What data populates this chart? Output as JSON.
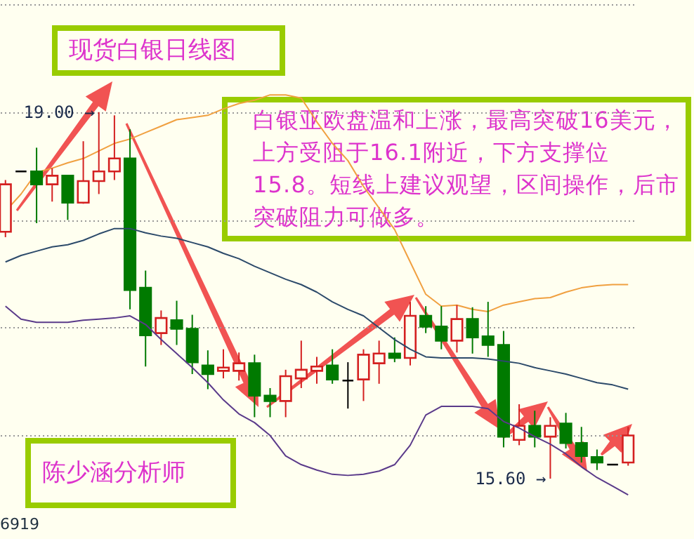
{
  "chart_data": {
    "type": "candlestick",
    "title": "现货白银日线图",
    "annotations": [
      "白银亚欧盘温和上涨，最高突破16美元，上方受阻于16.1附近，下方支撑位15.8。短线上建议观望，区间操作，后市突破阻力可做多。",
      "陈少涵分析师",
      "6919",
      "19.00 →",
      "15.60 →"
    ],
    "categories": [
      null,
      null,
      null,
      null,
      null,
      null,
      null,
      null,
      null,
      null,
      null,
      null,
      null,
      null,
      null,
      null,
      null,
      null,
      null,
      null,
      null,
      null,
      null,
      null,
      null,
      null,
      null,
      null,
      null,
      null,
      null,
      null,
      null,
      null,
      null,
      null,
      null,
      null,
      null,
      null,
      null
    ],
    "ohlc": [
      [
        17.89,
        18.37,
        17.84,
        18.33
      ],
      [
        18.45,
        18.45,
        18.45,
        18.45
      ],
      [
        18.45,
        18.67,
        17.97,
        18.33
      ],
      [
        18.33,
        18.48,
        18.17,
        18.41
      ],
      [
        18.41,
        18.41,
        18.0,
        18.16
      ],
      [
        18.16,
        18.73,
        18.15,
        18.36
      ],
      [
        18.36,
        19.0,
        18.24,
        18.45
      ],
      [
        18.45,
        18.97,
        18.37,
        18.57
      ],
      [
        18.57,
        18.84,
        17.17,
        17.35
      ],
      [
        17.37,
        17.53,
        16.64,
        16.93
      ],
      [
        16.95,
        17.16,
        16.84,
        17.09
      ],
      [
        17.07,
        17.25,
        16.84,
        16.99
      ],
      [
        16.99,
        17.12,
        16.57,
        16.68
      ],
      [
        16.65,
        16.79,
        16.43,
        16.57
      ],
      [
        16.6,
        16.8,
        16.53,
        16.63
      ],
      [
        16.6,
        16.77,
        16.51,
        16.67
      ],
      [
        16.67,
        16.75,
        16.17,
        16.37
      ],
      [
        16.37,
        16.44,
        16.17,
        16.32
      ],
      [
        16.32,
        16.61,
        16.17,
        16.55
      ],
      [
        16.53,
        16.88,
        16.44,
        16.61
      ],
      [
        16.6,
        16.73,
        16.48,
        16.64
      ],
      [
        16.65,
        16.8,
        16.48,
        16.52
      ],
      [
        16.51,
        16.68,
        16.25,
        16.51
      ],
      [
        16.52,
        16.8,
        16.32,
        16.75
      ],
      [
        16.67,
        16.88,
        16.48,
        16.76
      ],
      [
        16.76,
        16.91,
        16.68,
        16.72
      ],
      [
        16.72,
        17.24,
        16.65,
        17.11
      ],
      [
        17.11,
        17.2,
        16.95,
        17.01
      ],
      [
        17.01,
        17.2,
        16.8,
        16.88
      ],
      [
        16.88,
        17.21,
        16.77,
        17.08
      ],
      [
        17.08,
        17.19,
        16.76,
        16.91
      ],
      [
        16.92,
        17.24,
        16.73,
        16.84
      ],
      [
        16.84,
        16.97,
        15.89,
        15.99
      ],
      [
        15.96,
        16.29,
        15.91,
        16.09
      ],
      [
        16.09,
        16.23,
        15.89,
        15.99
      ],
      [
        15.99,
        16.17,
        15.6,
        16.09
      ],
      [
        16.11,
        16.21,
        15.88,
        15.93
      ],
      [
        15.93,
        16.08,
        15.75,
        15.81
      ],
      [
        15.8,
        15.87,
        15.68,
        15.75
      ],
      [
        15.73,
        15.73,
        15.73,
        15.73
      ],
      [
        15.75,
        16.08,
        15.72,
        16.0
      ]
    ],
    "colors": [
      "#d42020",
      "#000000",
      "#007a00",
      "#d42020",
      "#007a00",
      "#d42020",
      "#d42020",
      "#d42020",
      "#007a00",
      "#007a00",
      "#d42020",
      "#007a00",
      "#007a00",
      "#007a00",
      "#d42020",
      "#d42020",
      "#007a00",
      "#007a00",
      "#d42020",
      "#d42020",
      "#d42020",
      "#007a00",
      "#000000",
      "#d42020",
      "#d42020",
      "#007a00",
      "#d42020",
      "#007a00",
      "#007a00",
      "#d42020",
      "#007a00",
      "#007a00",
      "#007a00",
      "#d42020",
      "#007a00",
      "#d42020",
      "#007a00",
      "#007a00",
      "#007a00",
      "#000000",
      "#d42020"
    ],
    "series": [
      {
        "type": "line",
        "color": "#f0a040",
        "values": [
          18.08,
          18.24,
          18.44,
          18.48,
          18.53,
          18.57,
          18.64,
          18.71,
          18.75,
          18.81,
          18.87,
          18.93,
          18.95,
          18.97,
          19.03,
          19.08,
          19.11,
          19.16,
          19.16,
          19.13,
          18.91,
          18.71,
          18.55,
          18.31,
          18.11,
          17.91,
          17.61,
          17.31,
          17.2,
          17.21,
          17.17,
          17.15,
          17.21,
          17.24,
          17.27,
          17.28,
          17.33,
          17.37,
          17.39,
          17.4,
          17.4
        ]
      },
      {
        "type": "line",
        "color": "#2c4a6a",
        "values": [
          17.61,
          17.67,
          17.71,
          17.75,
          17.77,
          17.81,
          17.87,
          17.92,
          17.92,
          17.88,
          17.85,
          17.83,
          17.79,
          17.75,
          17.69,
          17.64,
          17.57,
          17.51,
          17.45,
          17.4,
          17.33,
          17.24,
          17.17,
          17.11,
          17.0,
          16.89,
          16.8,
          16.73,
          16.72,
          16.72,
          16.72,
          16.71,
          16.69,
          16.67,
          16.63,
          16.6,
          16.57,
          16.53,
          16.49,
          16.47,
          16.43
        ]
      },
      {
        "type": "line",
        "color": "#5a3a8a",
        "values": [
          17.2,
          17.08,
          17.05,
          17.05,
          17.05,
          17.07,
          17.08,
          17.09,
          17.11,
          17.03,
          16.89,
          16.76,
          16.63,
          16.49,
          16.33,
          16.2,
          16.12,
          16.0,
          15.81,
          15.73,
          15.68,
          15.64,
          15.63,
          15.64,
          15.67,
          15.73,
          15.91,
          16.19,
          16.27,
          16.27,
          16.27,
          16.25,
          16.13,
          16.07,
          15.99,
          15.92,
          15.83,
          15.71,
          15.61,
          15.53,
          15.45
        ]
      }
    ],
    "ylim": [
      15.04,
      20.04
    ],
    "yticks": [
      {
        "value": 16,
        "label": null
      },
      {
        "value": 17,
        "label": null
      },
      {
        "value": 18,
        "label": null
      },
      {
        "value": 19,
        "label": null
      },
      {
        "value": 20,
        "label": null
      }
    ],
    "grid": "y",
    "tick_labels": false
  }
}
